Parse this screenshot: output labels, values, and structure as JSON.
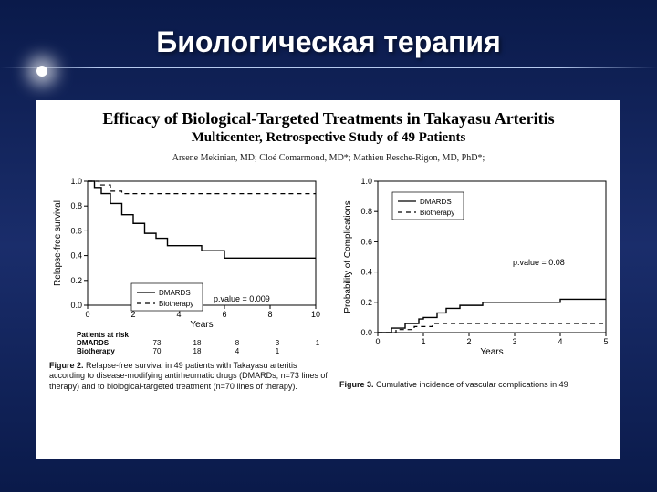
{
  "slide": {
    "title": "Биологическая терапия"
  },
  "paper": {
    "title": "Efficacy of Biological-Targeted Treatments in Takayasu Arteritis",
    "subtitle": "Multicenter, Retrospective Study of 49 Patients",
    "authors": "Arsene Mekinian, MD; Cloé Comarmond, MD*; Mathieu Resche-Rigon, MD, PhD*;"
  },
  "fig2": {
    "type": "line",
    "ylabel": "Relapse-free survival",
    "xlabel": "Years",
    "xlim": [
      0,
      10
    ],
    "ylim": [
      0,
      1.0
    ],
    "xticks": [
      0,
      2,
      4,
      6,
      8,
      10
    ],
    "yticks": [
      0.0,
      0.2,
      0.4,
      0.6,
      0.8,
      1.0
    ],
    "legend": {
      "items": [
        "DMARDS",
        "Biotherapy"
      ],
      "position": "lower-center"
    },
    "pvalue": "p.value = 0.009",
    "series": {
      "DMARDS": {
        "style": "solid",
        "color": "#000000",
        "line_width": 1.4,
        "points": [
          [
            0,
            1.0
          ],
          [
            0.3,
            0.95
          ],
          [
            0.6,
            0.9
          ],
          [
            1.0,
            0.82
          ],
          [
            1.5,
            0.73
          ],
          [
            2.0,
            0.66
          ],
          [
            2.5,
            0.58
          ],
          [
            3.0,
            0.54
          ],
          [
            3.5,
            0.48
          ],
          [
            5.0,
            0.44
          ],
          [
            6.0,
            0.38
          ],
          [
            10.0,
            0.38
          ]
        ]
      },
      "Biotherapy": {
        "style": "dashed",
        "color": "#000000",
        "line_width": 1.2,
        "points": [
          [
            0,
            1.0
          ],
          [
            0.5,
            0.97
          ],
          [
            1.0,
            0.92
          ],
          [
            1.5,
            0.9
          ],
          [
            10.0,
            0.9
          ]
        ]
      }
    },
    "risk_table": {
      "header": "Patients at risk",
      "columns": [
        "0",
        "2",
        "4",
        "6",
        "8"
      ],
      "rows": [
        {
          "label": "DMARDS",
          "values": [
            73,
            18,
            8,
            3,
            1
          ]
        },
        {
          "label": "Biotherapy",
          "values": [
            70,
            18,
            4,
            1,
            " "
          ]
        }
      ]
    },
    "caption_label": "Figure 2.",
    "caption": "Relapse-free survival in 49 patients with Takayasu arteritis according to disease-modifying antirheumatic drugs (DMARDs; n=73 lines of therapy) and to biological-targeted treatment (n=70 lines of therapy)."
  },
  "fig3": {
    "type": "line",
    "ylabel": "Probability of Complications",
    "xlabel": "Years",
    "xlim": [
      0,
      5
    ],
    "ylim": [
      0,
      1.0
    ],
    "xticks": [
      0,
      1,
      2,
      3,
      4,
      5
    ],
    "yticks": [
      0.0,
      0.2,
      0.4,
      0.6,
      0.8,
      1.0
    ],
    "legend": {
      "items": [
        "DMARDS",
        "Biotherapy"
      ],
      "position": "upper-left"
    },
    "pvalue": "p.value = 0.08",
    "series": {
      "DMARDS": {
        "style": "solid",
        "color": "#000000",
        "line_width": 1.4,
        "points": [
          [
            0,
            0.0
          ],
          [
            0.3,
            0.03
          ],
          [
            0.6,
            0.06
          ],
          [
            0.9,
            0.09
          ],
          [
            1.0,
            0.1
          ],
          [
            1.3,
            0.13
          ],
          [
            1.5,
            0.16
          ],
          [
            1.8,
            0.18
          ],
          [
            2.3,
            0.2
          ],
          [
            4.0,
            0.22
          ],
          [
            5.0,
            0.22
          ]
        ]
      },
      "Biotherapy": {
        "style": "dashed",
        "color": "#000000",
        "line_width": 1.2,
        "points": [
          [
            0,
            0.0
          ],
          [
            0.4,
            0.02
          ],
          [
            0.8,
            0.04
          ],
          [
            1.2,
            0.06
          ],
          [
            5.0,
            0.06
          ]
        ]
      }
    },
    "caption_label": "Figure 3.",
    "caption": "Cumulative incidence of vascular complications in 49"
  },
  "style": {
    "background_gradient": [
      "#0a1a4a",
      "#1a2d6b",
      "#0a1a4a"
    ],
    "title_color": "#ffffff",
    "paper_bg": "#ffffff",
    "axis_color": "#000000",
    "tick_fontsize": 9,
    "label_fontsize": 9,
    "caption_fontsize": 9
  }
}
